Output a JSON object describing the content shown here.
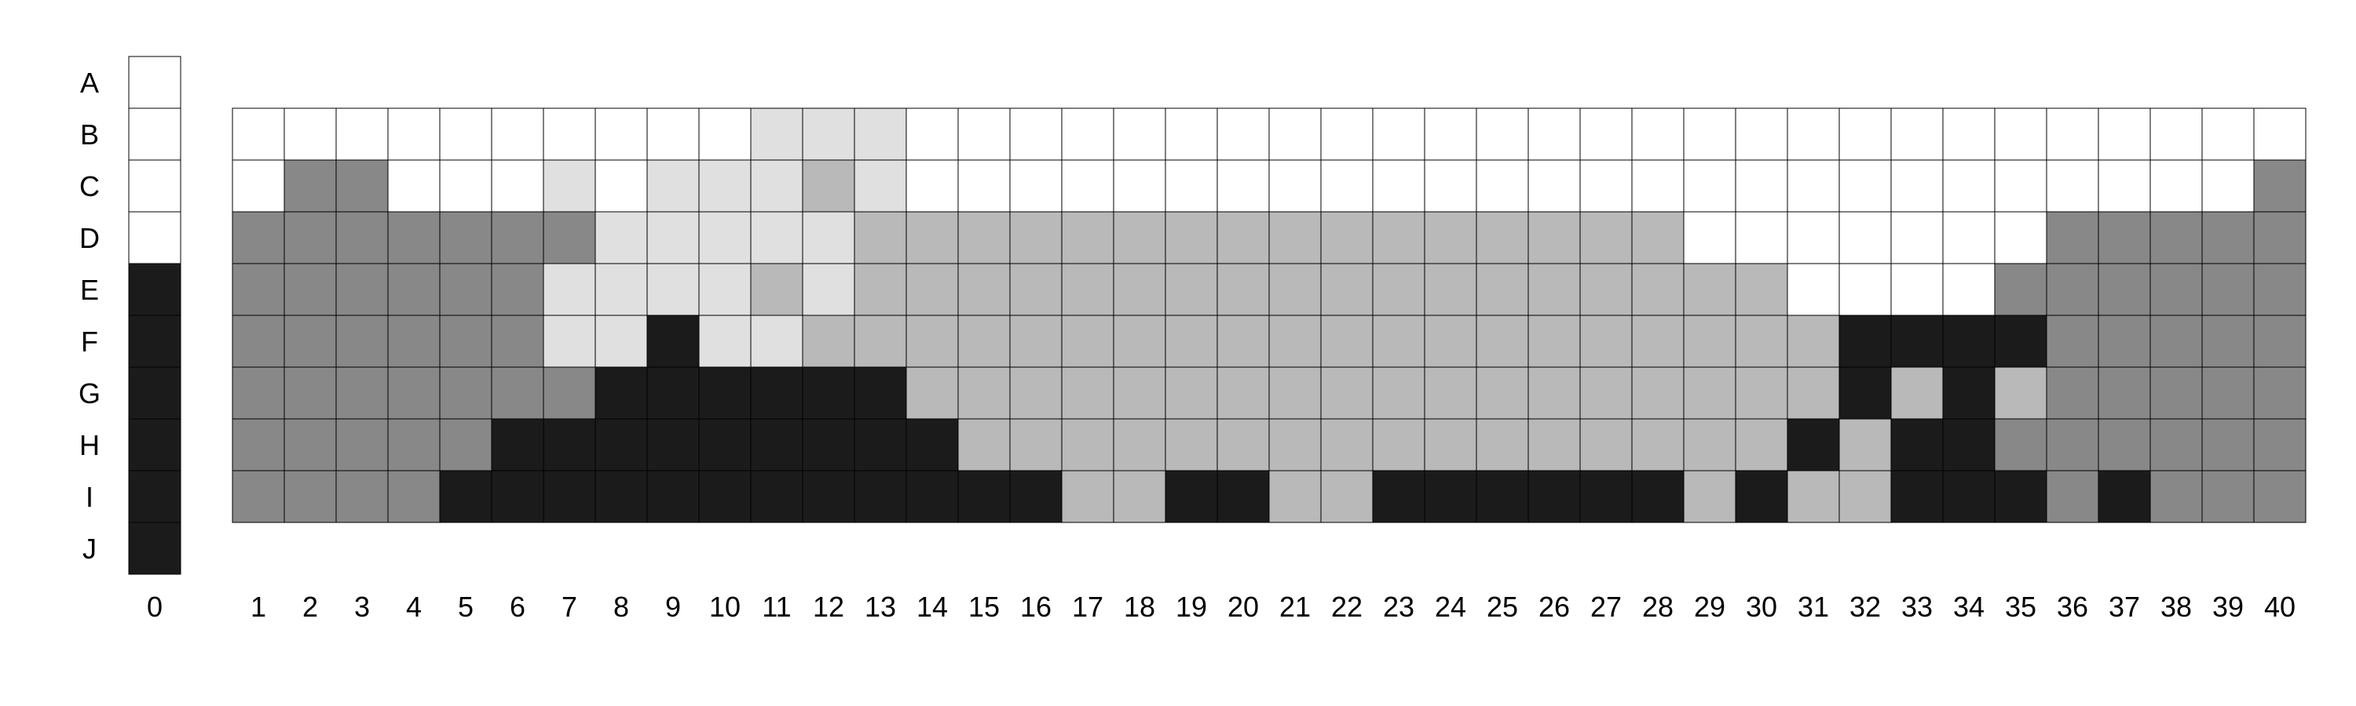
{
  "row_labels": [
    "A",
    "B",
    "C",
    "D",
    "E",
    "F",
    "G",
    "H",
    "I",
    "J"
  ],
  "col_labels": [
    "0",
    "1",
    "2",
    "3",
    "4",
    "5",
    "6",
    "7",
    "8",
    "9",
    "10",
    "11",
    "12",
    "13",
    "14",
    "15",
    "16",
    "17",
    "18",
    "19",
    "20",
    "21",
    "22",
    "23",
    "24",
    "25",
    "26",
    "27",
    "28",
    "29",
    "30",
    "31",
    "32",
    "33",
    "34",
    "35",
    "36",
    "37",
    "38",
    "39",
    "40"
  ],
  "palette": {
    "0": "#ffffff",
    "1": "#e0e0e0",
    "2": "#b9b9b9",
    "3": "#888888",
    "4": "#1b1b1b"
  },
  "legend_column": [
    "0",
    "0",
    "0",
    "0",
    "4",
    "4",
    "4",
    "4",
    "4",
    "4"
  ],
  "grid_rows": {
    "B": "0000000000111000000000000000000000000000",
    "C": "0330001011121000000000000000000000000003",
    "D": "3333333111112222222222222222000000033333",
    "E": "3333331111212222222222222222220000333333",
    "F": "3333331141122222222222222222222444433333",
    "G": "3333333444444222222222222222222424233333",
    "H": "3333344444444422222222222222224244333333",
    "I": "3333444444444444224422444444242244434333"
  }
}
